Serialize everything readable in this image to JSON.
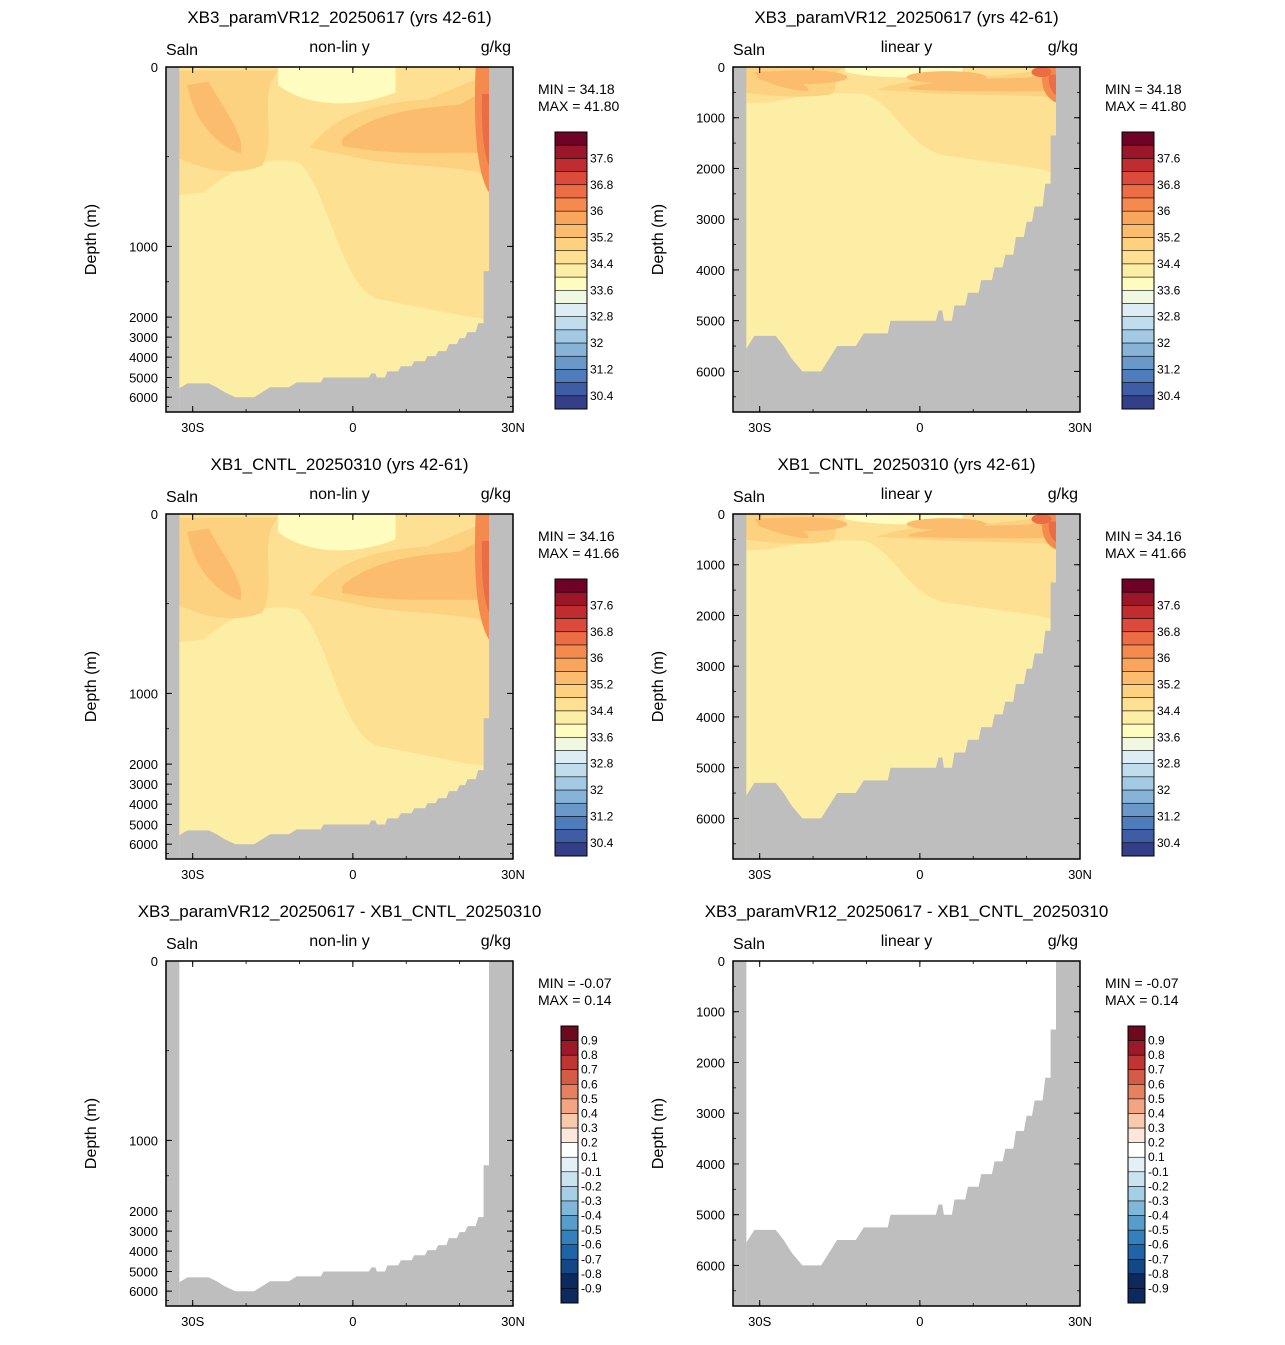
{
  "colors": {
    "land": "#bebebe",
    "frame": "#000000",
    "background": "#ffffff",
    "mean_scale": [
      "#2c1e5c",
      "#343f8a",
      "#3f5da5",
      "#4f7cba",
      "#6a99c9",
      "#86b3d7",
      "#a3cae3",
      "#c0dded",
      "#dcedf3",
      "#f1f8e2",
      "#fffcc0",
      "#fdeea6",
      "#fde092",
      "#fcd180",
      "#fbbd6d",
      "#f9a65d",
      "#f58a4f",
      "#ec6c44",
      "#db4a3a",
      "#c02d31",
      "#9b1628",
      "#6e0327"
    ],
    "diff_scale": [
      "#0d2a5e",
      "#134786",
      "#1f64a6",
      "#3580bc",
      "#569dca",
      "#7eb7d8",
      "#a5cfe5",
      "#c9e3ef",
      "#e4f0f6",
      "#ffffff",
      "#fde7da",
      "#f9c9ae",
      "#f3a583",
      "#e6805f",
      "#d45b45",
      "#bd3633",
      "#9a1a28",
      "#6c0a20"
    ]
  },
  "panels": [
    {
      "title": "XB3_paramVR12_20250617 (yrs 42-61)",
      "var": "Saln",
      "scale_label": "non-lin y",
      "units": "g/kg",
      "ylabel": "Depth (m)",
      "yticks": [
        "0",
        "1000",
        "2000",
        "3000",
        "4000",
        "5000",
        "6000"
      ],
      "xticks": [
        "30S",
        "0",
        "30N"
      ],
      "min_label": "MIN =  34.18",
      "max_label": "MAX =  41.80",
      "colorbar": [
        "37.6",
        "36.8",
        "36",
        "35.2",
        "34.4",
        "33.6",
        "32.8",
        "32",
        "31.2",
        "30.4"
      ],
      "field": "mean",
      "yscale": "non-linear"
    },
    {
      "title": "XB3_paramVR12_20250617 (yrs 42-61)",
      "var": "Saln",
      "scale_label": "linear y",
      "units": "g/kg",
      "ylabel": "Depth (m)",
      "yticks": [
        "0",
        "1000",
        "2000",
        "3000",
        "4000",
        "5000",
        "6000"
      ],
      "xticks": [
        "30S",
        "0",
        "30N"
      ],
      "min_label": "MIN =  34.18",
      "max_label": "MAX =  41.80",
      "colorbar": [
        "37.6",
        "36.8",
        "36",
        "35.2",
        "34.4",
        "33.6",
        "32.8",
        "32",
        "31.2",
        "30.4"
      ],
      "field": "mean",
      "yscale": "linear"
    },
    {
      "title": "XB1_CNTL_20250310 (yrs 42-61)",
      "var": "Saln",
      "scale_label": "non-lin y",
      "units": "g/kg",
      "ylabel": "Depth (m)",
      "yticks": [
        "0",
        "1000",
        "2000",
        "3000",
        "4000",
        "5000",
        "6000"
      ],
      "xticks": [
        "30S",
        "0",
        "30N"
      ],
      "min_label": "MIN =  34.16",
      "max_label": "MAX =  41.66",
      "colorbar": [
        "37.6",
        "36.8",
        "36",
        "35.2",
        "34.4",
        "33.6",
        "32.8",
        "32",
        "31.2",
        "30.4"
      ],
      "field": "mean",
      "yscale": "non-linear"
    },
    {
      "title": "XB1_CNTL_20250310 (yrs 42-61)",
      "var": "Saln",
      "scale_label": "linear y",
      "units": "g/kg",
      "ylabel": "Depth (m)",
      "yticks": [
        "0",
        "1000",
        "2000",
        "3000",
        "4000",
        "5000",
        "6000"
      ],
      "xticks": [
        "30S",
        "0",
        "30N"
      ],
      "min_label": "MIN =  34.16",
      "max_label": "MAX =  41.66",
      "colorbar": [
        "37.6",
        "36.8",
        "36",
        "35.2",
        "34.4",
        "33.6",
        "32.8",
        "32",
        "31.2",
        "30.4"
      ],
      "field": "mean",
      "yscale": "linear"
    },
    {
      "title": "XB3_paramVR12_20250617 - XB1_CNTL_20250310",
      "var": "Saln",
      "scale_label": "non-lin y",
      "units": "g/kg",
      "ylabel": "Depth (m)",
      "yticks": [
        "0",
        "1000",
        "2000",
        "3000",
        "4000",
        "5000",
        "6000"
      ],
      "xticks": [
        "30S",
        "0",
        "30N"
      ],
      "min_label": "MIN =  -0.07",
      "max_label": "MAX =   0.14",
      "colorbar": [
        "0.9",
        "0.8",
        "0.7",
        "0.6",
        "0.5",
        "0.4",
        "0.3",
        "0.2",
        "0.1",
        "-0.1",
        "-0.2",
        "-0.3",
        "-0.4",
        "-0.5",
        "-0.6",
        "-0.7",
        "-0.8",
        "-0.9"
      ],
      "field": "diff",
      "yscale": "non-linear"
    },
    {
      "title": "XB3_paramVR12_20250617 - XB1_CNTL_20250310",
      "var": "Saln",
      "scale_label": "linear y",
      "units": "g/kg",
      "ylabel": "Depth (m)",
      "yticks": [
        "0",
        "1000",
        "2000",
        "3000",
        "4000",
        "5000",
        "6000"
      ],
      "xticks": [
        "30S",
        "0",
        "30N"
      ],
      "min_label": "MIN =  -0.07",
      "max_label": "MAX =   0.14",
      "colorbar": [
        "0.9",
        "0.8",
        "0.7",
        "0.6",
        "0.5",
        "0.4",
        "0.3",
        "0.2",
        "0.1",
        "-0.1",
        "-0.2",
        "-0.3",
        "-0.4",
        "-0.5",
        "-0.6",
        "-0.7",
        "-0.8",
        "-0.9"
      ],
      "field": "diff",
      "yscale": "linear"
    }
  ],
  "chart_data": [
    {
      "type": "heatmap",
      "title": "XB3_paramVR12_20250617 (yrs 42-61)",
      "variable": "Saln",
      "units": "g/kg",
      "ylabel": "Depth (m)",
      "x_range": [
        "35S",
        "30N"
      ],
      "ylim": [
        6800,
        0
      ],
      "y_scale": "non-linear",
      "min": 34.18,
      "max": 41.8
    },
    {
      "type": "heatmap",
      "title": "XB3_paramVR12_20250617 (yrs 42-61)",
      "variable": "Saln",
      "units": "g/kg",
      "ylabel": "Depth (m)",
      "x_range": [
        "35S",
        "30N"
      ],
      "ylim": [
        6800,
        0
      ],
      "y_scale": "linear",
      "min": 34.18,
      "max": 41.8
    },
    {
      "type": "heatmap",
      "title": "XB1_CNTL_20250310 (yrs 42-61)",
      "variable": "Saln",
      "units": "g/kg",
      "ylabel": "Depth (m)",
      "x_range": [
        "35S",
        "30N"
      ],
      "ylim": [
        6800,
        0
      ],
      "y_scale": "non-linear",
      "min": 34.16,
      "max": 41.66
    },
    {
      "type": "heatmap",
      "title": "XB1_CNTL_20250310 (yrs 42-61)",
      "variable": "Saln",
      "units": "g/kg",
      "ylabel": "Depth (m)",
      "x_range": [
        "35S",
        "30N"
      ],
      "ylim": [
        6800,
        0
      ],
      "y_scale": "linear",
      "min": 34.16,
      "max": 41.66
    },
    {
      "type": "heatmap",
      "title": "XB3_paramVR12_20250617 - XB1_CNTL_20250310",
      "variable": "Saln",
      "units": "g/kg",
      "ylabel": "Depth (m)",
      "x_range": [
        "35S",
        "30N"
      ],
      "ylim": [
        6800,
        0
      ],
      "y_scale": "non-linear",
      "min": -0.07,
      "max": 0.14
    },
    {
      "type": "heatmap",
      "title": "XB3_paramVR12_20250617 - XB1_CNTL_20250310",
      "variable": "Saln",
      "units": "g/kg",
      "ylabel": "Depth (m)",
      "x_range": [
        "35S",
        "30N"
      ],
      "ylim": [
        6800,
        0
      ],
      "y_scale": "linear",
      "min": -0.07,
      "max": 0.14
    }
  ]
}
